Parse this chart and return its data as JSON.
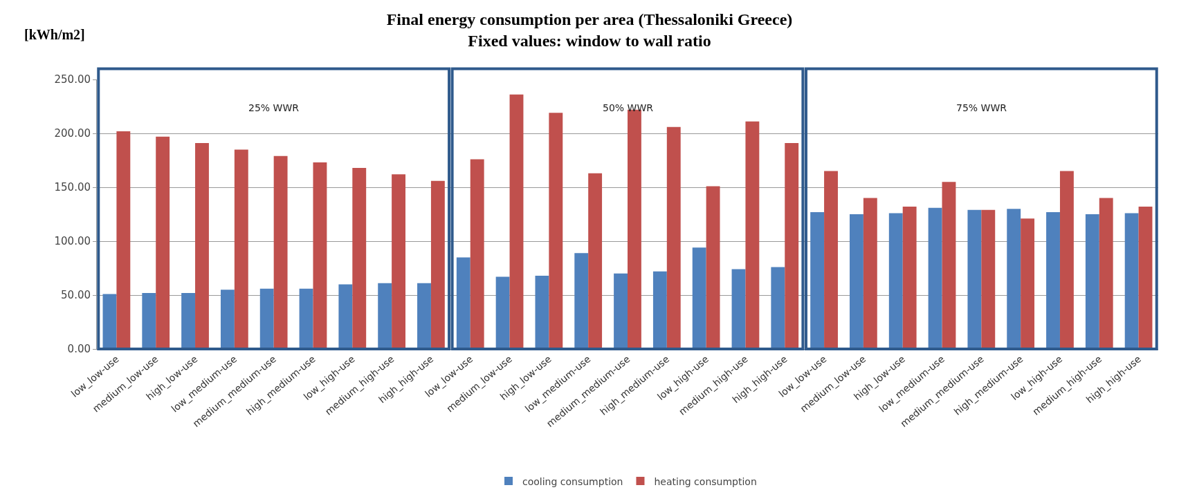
{
  "chart_data": {
    "type": "bar",
    "title": "Final energy consumption per area (Thessaloniki Greece)\nFixed values: window to wall ratio",
    "ylabel": "[kWh/m2]",
    "categories": [
      "low_low-use",
      "medium_low-use",
      "high_low-use",
      "low_medium-use",
      "medium_medium-use",
      "high_medium-use",
      "low_high-use",
      "medium_high-use",
      "high_high-use",
      "low_low-use",
      "medium_low-use",
      "high_low-use",
      "low_medium-use",
      "medium_medium-use",
      "high_medium-use",
      "low_high-use",
      "medium_high-use",
      "high_high-use",
      "low_low-use",
      "medium_low-use",
      "high_low-use",
      "low_medium-use",
      "medium_medium-use",
      "high_medium-use",
      "low_high-use",
      "medium_high-use",
      "high_high-use"
    ],
    "series": [
      {
        "name": "cooling consumption",
        "color": "#4f81bd",
        "values": [
          51,
          52,
          52,
          55,
          56,
          56,
          60,
          61,
          61,
          85,
          67,
          68,
          89,
          70,
          72,
          94,
          74,
          76,
          127,
          125,
          126,
          131,
          129,
          130,
          127,
          125,
          126
        ]
      },
      {
        "name": "heating consumption",
        "color": "#c0504d",
        "values": [
          202,
          197,
          191,
          185,
          179,
          173,
          168,
          162,
          156,
          176,
          236,
          219,
          163,
          222,
          206,
          151,
          211,
          191,
          165,
          140,
          132,
          155,
          129,
          121,
          165,
          140,
          132
        ]
      }
    ],
    "ylim": [
      0,
      250
    ],
    "yticks": [
      {
        "value": 0,
        "label": "0.00"
      },
      {
        "value": 50,
        "label": "50.00"
      },
      {
        "value": 100,
        "label": "100.00"
      },
      {
        "value": 150,
        "label": "150.00"
      },
      {
        "value": 200,
        "label": "200.00"
      },
      {
        "value": 250,
        "label": "250.00"
      }
    ],
    "grid": "y",
    "legend": "bottom",
    "annotations": [
      "25% WWR",
      "50% WWR",
      "75% WWR"
    ]
  }
}
